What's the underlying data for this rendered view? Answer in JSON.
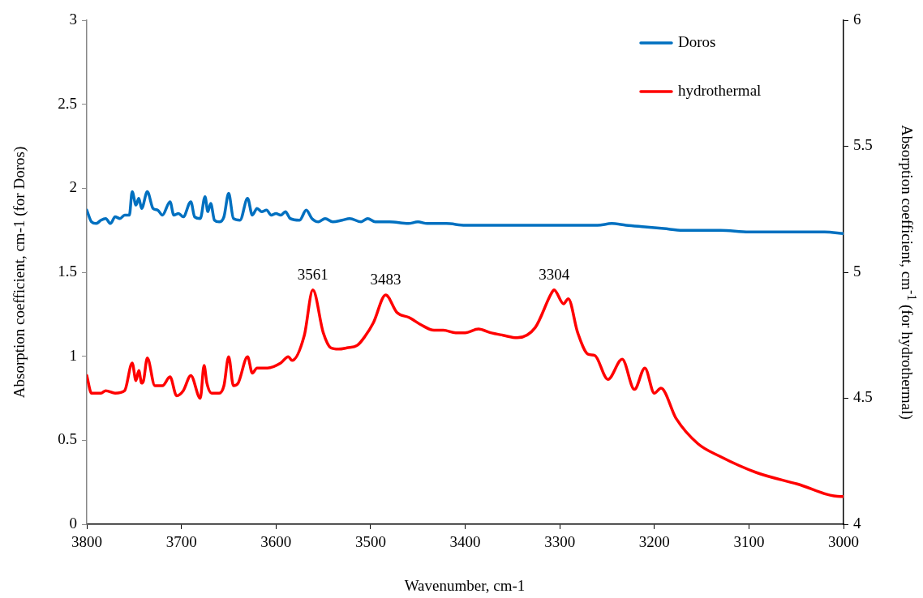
{
  "chart_data": {
    "type": "line",
    "xlabel": "Wavenumber, cm-1",
    "ylabel": "Absorption coefficient, cm-1 (for Doros)",
    "y2label": "Absorption coefficient, cm$^{-1}$ (for hydrothermal)",
    "xlim": [
      3800,
      3000
    ],
    "xticks": [
      3800,
      3700,
      3600,
      3500,
      3400,
      3300,
      3200,
      3100,
      3000
    ],
    "ylim": [
      0,
      3
    ],
    "yticks": [
      0,
      0.5,
      1,
      1.5,
      2,
      2.5,
      3
    ],
    "y2lim": [
      4,
      6
    ],
    "y2ticks": [
      4,
      4.5,
      5,
      5.5,
      6
    ],
    "legend": "top right",
    "marker": "none",
    "line_style": "solid",
    "grid": false,
    "annotations": [
      "3561",
      "3483",
      "3304"
    ],
    "series": [
      {
        "name": "Doros",
        "color": "#0070c0",
        "x": [
          3800,
          3795,
          3790,
          3785,
          3780,
          3775,
          3770,
          3765,
          3760,
          3755,
          3752,
          3748,
          3745,
          3742,
          3736,
          3730,
          3725,
          3720,
          3712,
          3708,
          3703,
          3698,
          3690,
          3686,
          3680,
          3675,
          3672,
          3669,
          3665,
          3660,
          3655,
          3650,
          3645,
          3638,
          3630,
          3625,
          3620,
          3615,
          3610,
          3605,
          3600,
          3595,
          3590,
          3585,
          3575,
          3568,
          3562,
          3555,
          3548,
          3540,
          3530,
          3522,
          3510,
          3503,
          3495,
          3480,
          3460,
          3450,
          3440,
          3420,
          3400,
          3380,
          3360,
          3340,
          3320,
          3300,
          3280,
          3260,
          3245,
          3230,
          3210,
          3190,
          3170,
          3150,
          3130,
          3100,
          3080,
          3060,
          3040,
          3020,
          3000
        ],
        "values": [
          1.87,
          1.8,
          1.79,
          1.81,
          1.82,
          1.79,
          1.83,
          1.82,
          1.84,
          1.84,
          1.98,
          1.9,
          1.94,
          1.88,
          1.98,
          1.88,
          1.87,
          1.84,
          1.92,
          1.84,
          1.85,
          1.83,
          1.92,
          1.83,
          1.82,
          1.95,
          1.86,
          1.91,
          1.81,
          1.8,
          1.83,
          1.97,
          1.82,
          1.81,
          1.94,
          1.84,
          1.88,
          1.86,
          1.87,
          1.84,
          1.85,
          1.84,
          1.86,
          1.82,
          1.81,
          1.87,
          1.82,
          1.8,
          1.82,
          1.8,
          1.81,
          1.82,
          1.8,
          1.82,
          1.8,
          1.8,
          1.79,
          1.8,
          1.79,
          1.79,
          1.78,
          1.78,
          1.78,
          1.78,
          1.78,
          1.78,
          1.78,
          1.78,
          1.79,
          1.78,
          1.77,
          1.76,
          1.75,
          1.75,
          1.75,
          1.74,
          1.74,
          1.74,
          1.74,
          1.74,
          1.73
        ]
      },
      {
        "name": "hydrothermal",
        "color": "#ff0000",
        "axis": "y2",
        "x": [
          3800,
          3795,
          3785,
          3780,
          3770,
          3760,
          3752,
          3748,
          3745,
          3742,
          3740,
          3736,
          3728,
          3720,
          3712,
          3705,
          3698,
          3690,
          3680,
          3676,
          3673,
          3668,
          3660,
          3655,
          3650,
          3645,
          3640,
          3630,
          3625,
          3620,
          3609,
          3595,
          3587,
          3583,
          3570,
          3561,
          3550,
          3542,
          3534,
          3525,
          3514,
          3506,
          3497,
          3484,
          3472,
          3459,
          3446,
          3433,
          3423,
          3410,
          3400,
          3386,
          3373,
          3360,
          3345,
          3326,
          3309,
          3306,
          3296,
          3291,
          3281,
          3270,
          3263,
          3249,
          3234,
          3221,
          3210,
          3200,
          3193,
          3177,
          3154,
          3131,
          3092,
          3049,
          3003,
          3000
        ],
        "values": [
          4.59,
          4.52,
          4.52,
          4.53,
          4.52,
          4.53,
          4.64,
          4.57,
          4.61,
          4.56,
          4.57,
          4.66,
          4.55,
          4.55,
          4.585,
          4.51,
          4.53,
          4.59,
          4.5,
          4.63,
          4.56,
          4.52,
          4.52,
          4.55,
          4.665,
          4.55,
          4.56,
          4.665,
          4.6,
          4.62,
          4.62,
          4.64,
          4.665,
          4.65,
          4.75,
          4.93,
          4.76,
          4.7,
          4.695,
          4.7,
          4.71,
          4.745,
          4.8,
          4.91,
          4.84,
          4.82,
          4.79,
          4.77,
          4.77,
          4.76,
          4.76,
          4.775,
          4.76,
          4.75,
          4.74,
          4.78,
          4.915,
          4.93,
          4.875,
          4.895,
          4.76,
          4.675,
          4.67,
          4.575,
          4.655,
          4.535,
          4.62,
          4.52,
          4.54,
          4.42,
          4.32,
          4.27,
          4.205,
          4.16,
          4.11,
          4.11
        ]
      }
    ]
  }
}
